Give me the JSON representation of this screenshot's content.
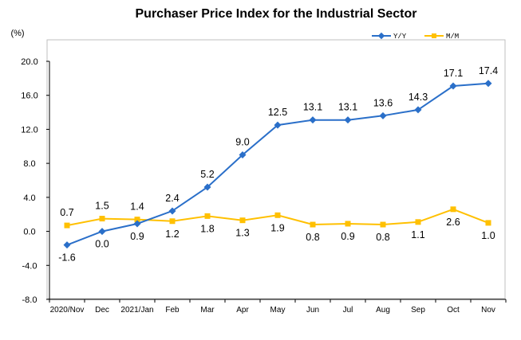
{
  "chart_data": {
    "type": "line",
    "title": "Purchaser Price Index for the Industrial Sector",
    "unit_label": "(%)",
    "categories": [
      "2020/Nov",
      "Dec",
      "2021/Jan",
      "Feb",
      "Mar",
      "Apr",
      "May",
      "Jun",
      "Jul",
      "Aug",
      "Sep",
      "Oct",
      "Nov"
    ],
    "series": [
      {
        "name": "Y/Y",
        "color": "#2A6FC9",
        "marker": "diamond",
        "values": [
          -1.6,
          0.0,
          0.9,
          2.4,
          5.2,
          9.0,
          12.5,
          13.1,
          13.1,
          13.6,
          14.3,
          17.1,
          17.4
        ],
        "labels": [
          "-1.6",
          "0.0",
          "0.9",
          "2.4",
          "5.2",
          "9.0",
          "12.5",
          "13.1",
          "13.1",
          "13.6",
          "14.3",
          "17.1",
          "17.4"
        ]
      },
      {
        "name": "M/M",
        "color": "#FFC000",
        "marker": "square",
        "values": [
          0.7,
          1.5,
          1.4,
          1.2,
          1.8,
          1.3,
          1.9,
          0.8,
          0.9,
          0.8,
          1.1,
          2.6,
          1.0
        ],
        "labels": [
          "0.7",
          "1.5",
          "1.4",
          "1.2",
          "1.8",
          "1.3",
          "1.9",
          "0.8",
          "0.9",
          "0.8",
          "1.1",
          "2.6",
          "1.0"
        ]
      }
    ],
    "y_ticks": [
      "20.0",
      "16.0",
      "12.0",
      "8.0",
      "4.0",
      "0.0",
      "-4.0",
      "-8.0"
    ],
    "ylim": [
      -8,
      20
    ],
    "y_step": 4,
    "grid": false,
    "legend_position": "top-right"
  }
}
